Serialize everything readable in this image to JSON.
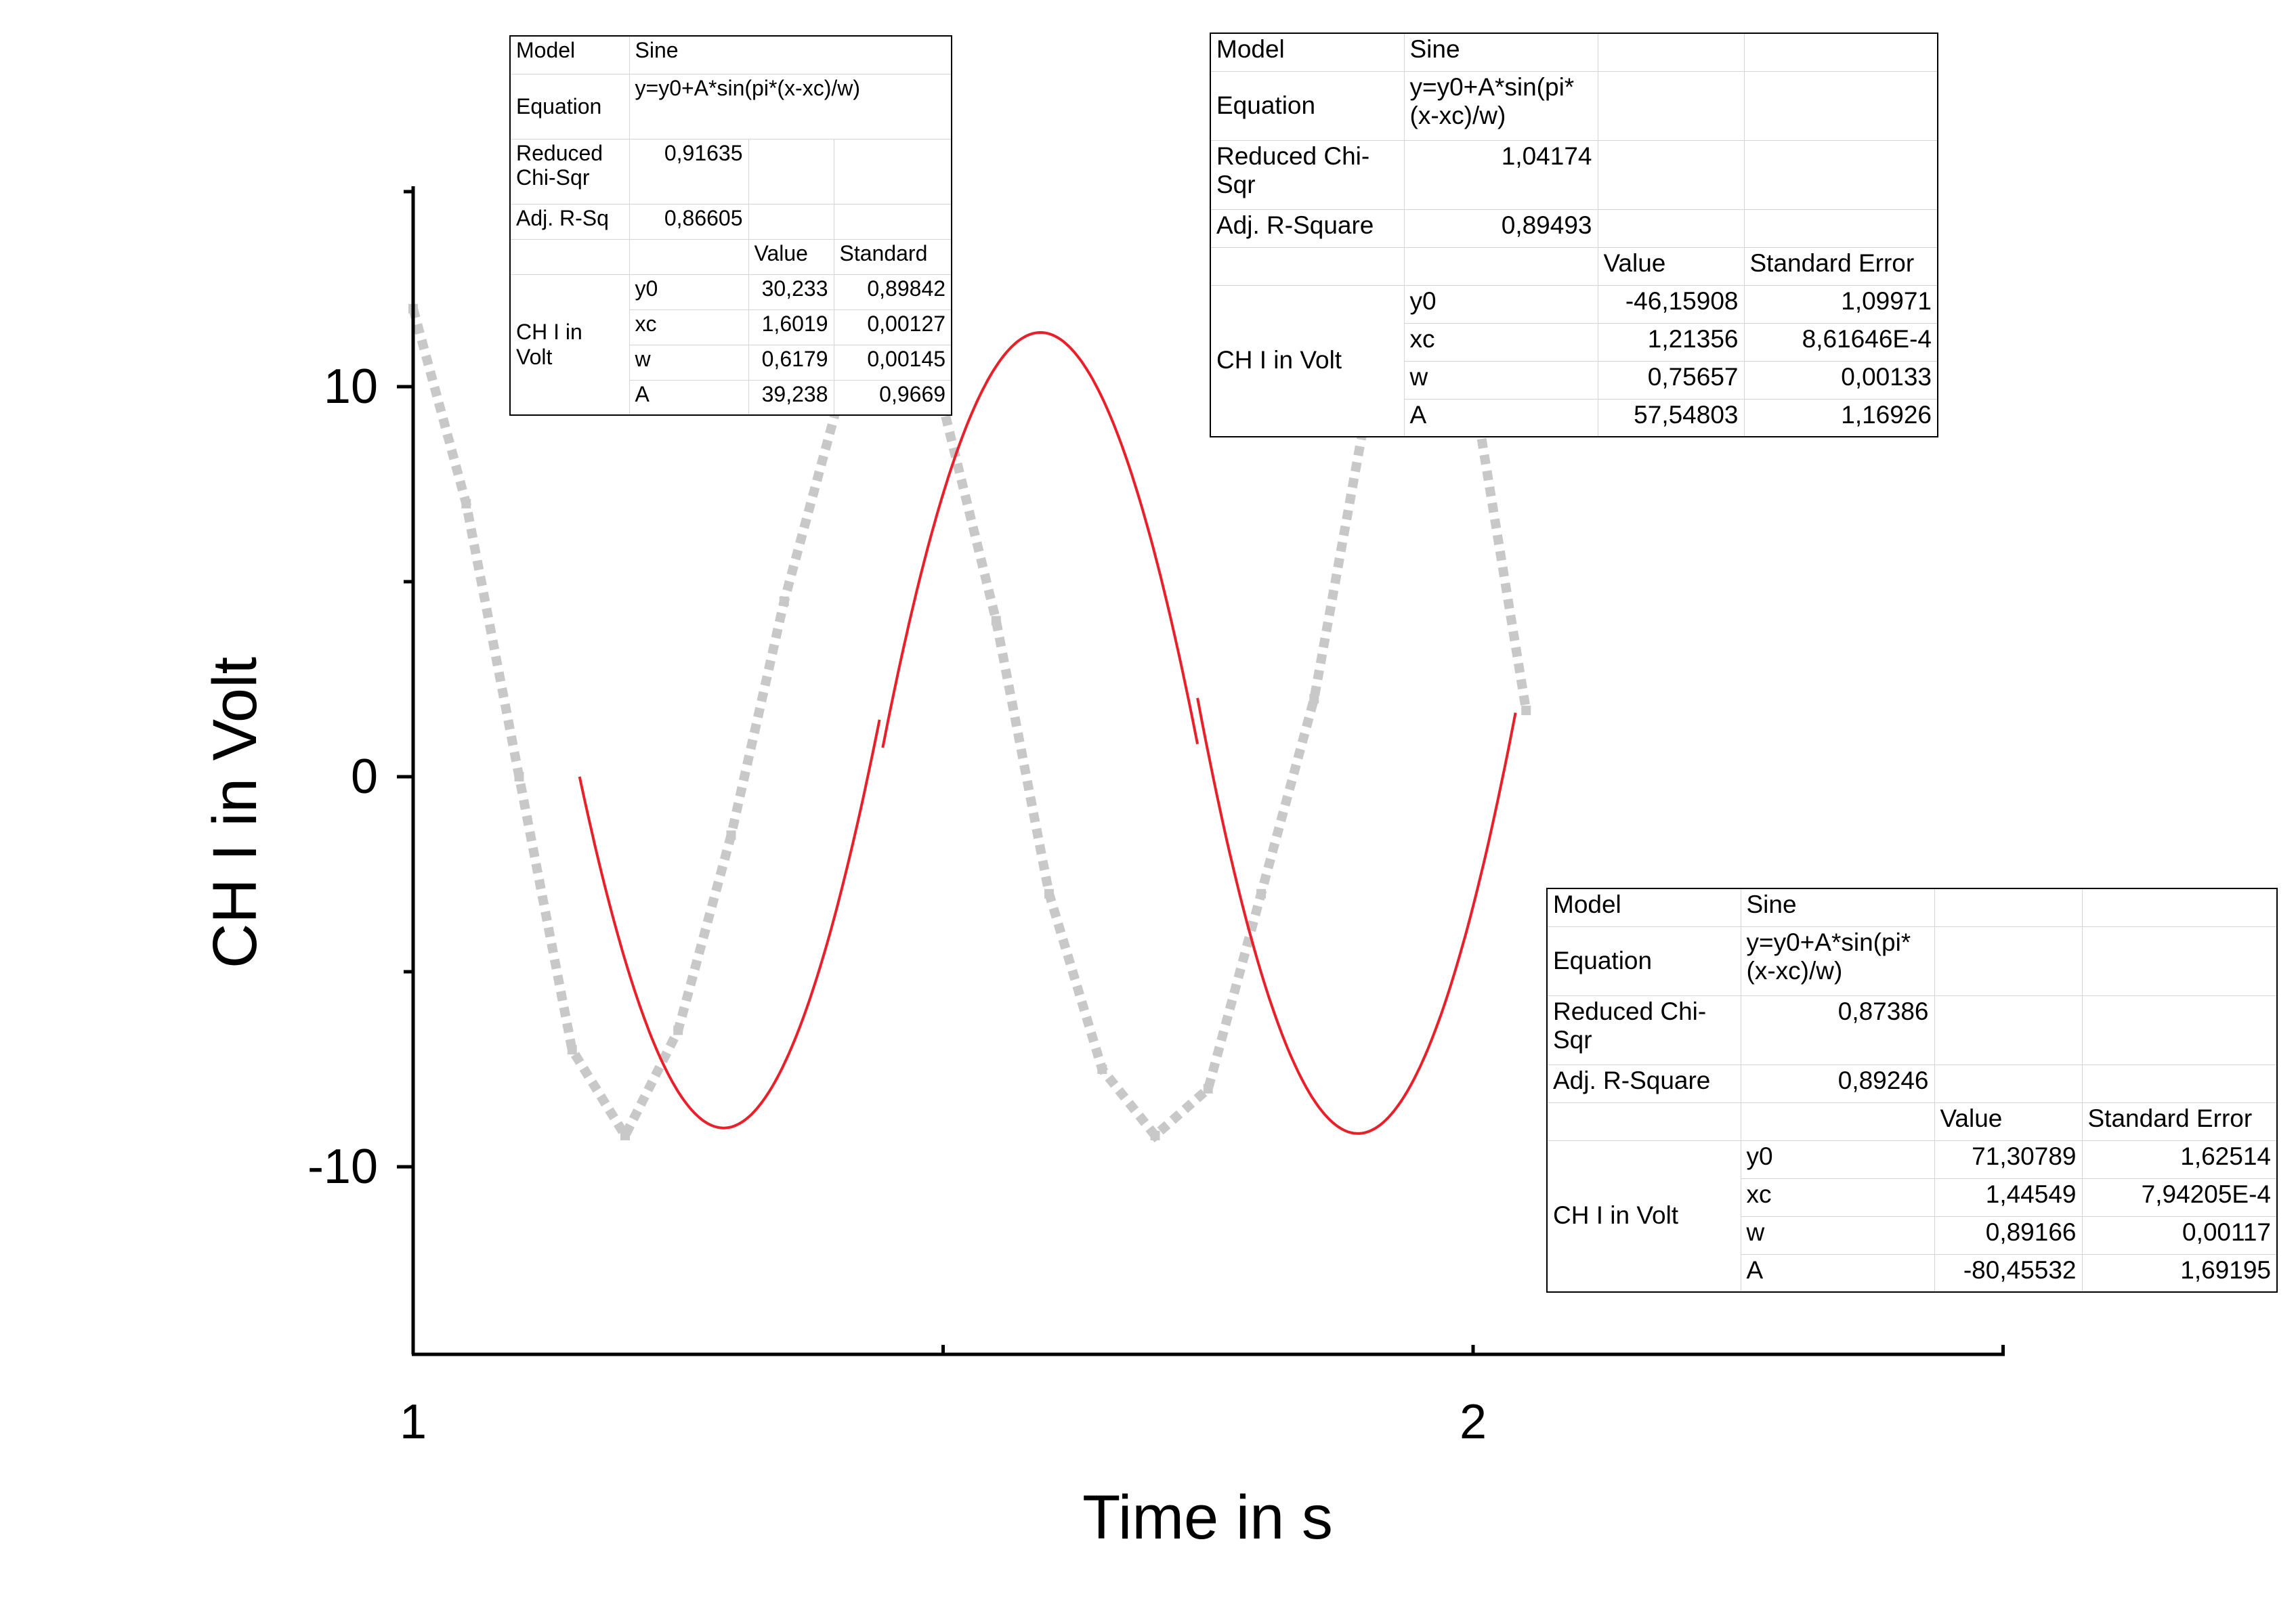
{
  "chart_data": {
    "type": "line",
    "title": "",
    "xlabel": "Time in s",
    "ylabel": "CH I in Volt",
    "xlim": [
      1,
      2.5
    ],
    "ylim": [
      -15,
      15
    ],
    "x_ticks": [
      1,
      2
    ],
    "x_tick_labels": [
      "1",
      "2"
    ],
    "y_ticks": [
      -10,
      0,
      10
    ],
    "y_tick_labels": [
      "-10",
      "0",
      "10"
    ],
    "grid": false,
    "legend": "none",
    "colors": {
      "measured": "#c8c8c8",
      "fit": "#e8202a",
      "axis": "#000000"
    },
    "series": [
      {
        "style": "dotted-steps",
        "x": [
          1.0,
          1.05,
          1.1,
          1.15,
          1.2,
          1.25,
          1.3,
          1.35,
          1.4,
          1.45,
          1.5,
          1.55,
          1.6,
          1.65,
          1.7,
          1.75,
          1.8,
          1.85,
          1.9,
          1.95,
          2.0,
          2.05
        ],
        "y": [
          12.0,
          7.0,
          0.0,
          -7.0,
          -9.2,
          -6.5,
          -1.5,
          4.5,
          9.5,
          11.5,
          9.5,
          4.0,
          -3.0,
          -7.5,
          -9.2,
          -8.0,
          -3.0,
          2.0,
          9.5,
          11.5,
          10.0,
          1.7
        ]
      },
      {
        "style": "fit-segments",
        "segments": [
          {
            "model": "sine",
            "y0": 30.233,
            "A": 39.238,
            "xc": 1.6019,
            "w": 0.6179,
            "x_range": [
              1.157,
              1.44
            ]
          },
          {
            "model": "sine",
            "y0": -46.15908,
            "A": 57.54803,
            "xc": 1.21356,
            "w": 0.75657,
            "x_range": [
              1.443,
              1.74
            ]
          },
          {
            "model": "sine",
            "y0": 71.30789,
            "A": -80.45532,
            "xc": 1.44549,
            "w": 0.89166,
            "x_range": [
              1.74,
              2.04
            ]
          }
        ]
      }
    ]
  },
  "fit_tables": [
    {
      "model_label": "Model",
      "model_value": "Sine",
      "equation_label": "Equation",
      "equation_value": "y=y0+A*sin(pi*(x-xc)/w)",
      "chisq_label": "Reduced Chi-Sqr",
      "chisq_value": "0,91635",
      "r2_label": "Adj. R-Sq",
      "r2_value": "0,86605",
      "value_header": "Value",
      "error_header": "Standard",
      "group_label": "CH I in Volt",
      "params": [
        {
          "name": "y0",
          "value": "30,233",
          "error": "0,89842"
        },
        {
          "name": "xc",
          "value": "1,6019",
          "error": "0,00127"
        },
        {
          "name": "w",
          "value": "0,6179",
          "error": "0,00145"
        },
        {
          "name": "A",
          "value": "39,238",
          "error": "0,9669"
        }
      ]
    },
    {
      "model_label": "Model",
      "model_value": "Sine",
      "equation_label": "Equation",
      "equation_value": "y=y0+A*sin(pi*(x-xc)/w)",
      "chisq_label": "Reduced Chi-Sqr",
      "chisq_value": "1,04174",
      "r2_label": "Adj. R-Square",
      "r2_value": "0,89493",
      "value_header": "Value",
      "error_header": "Standard Error",
      "group_label": "CH I in Volt",
      "params": [
        {
          "name": "y0",
          "value": "-46,15908",
          "error": "1,09971"
        },
        {
          "name": "xc",
          "value": "1,21356",
          "error": "8,61646E-4"
        },
        {
          "name": "w",
          "value": "0,75657",
          "error": "0,00133"
        },
        {
          "name": "A",
          "value": "57,54803",
          "error": "1,16926"
        }
      ]
    },
    {
      "model_label": "Model",
      "model_value": "Sine",
      "equation_label": "Equation",
      "equation_value": "y=y0+A*sin(pi*(x-xc)/w)",
      "chisq_label": "Reduced Chi-Sqr",
      "chisq_value": "0,87386",
      "r2_label": "Adj. R-Square",
      "r2_value": "0,89246",
      "value_header": "Value",
      "error_header": "Standard Error",
      "group_label": "CH I in Volt",
      "params": [
        {
          "name": "y0",
          "value": "71,30789",
          "error": "1,62514"
        },
        {
          "name": "xc",
          "value": "1,44549",
          "error": "7,94205E-4"
        },
        {
          "name": "w",
          "value": "0,89166",
          "error": "0,00117"
        },
        {
          "name": "A",
          "value": "-80,45532",
          "error": "1,69195"
        }
      ]
    }
  ]
}
